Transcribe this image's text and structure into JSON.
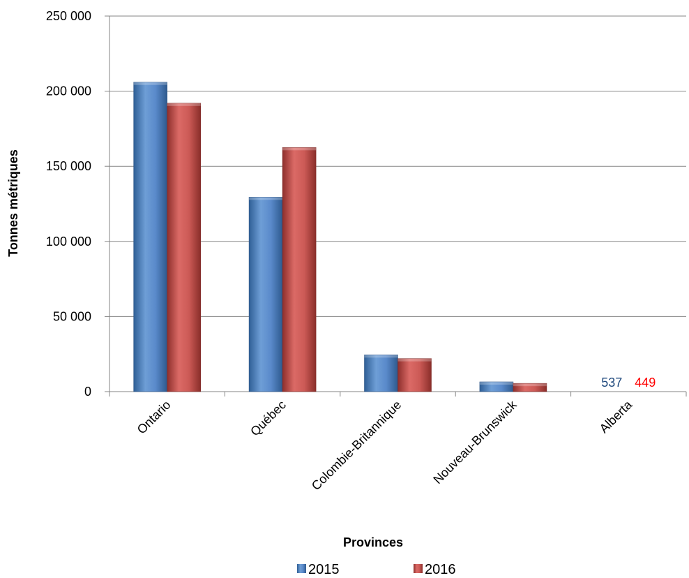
{
  "chart_data": {
    "type": "bar",
    "categories": [
      "Ontario",
      "Québec",
      "Colombie-Britannique",
      "Nouveau-Brunswick",
      "Alberta"
    ],
    "series": [
      {
        "name": "2015",
        "values": [
          206000,
          129500,
          24500,
          6500,
          537
        ],
        "color": "#4F81BD"
      },
      {
        "name": "2016",
        "values": [
          192000,
          162500,
          22000,
          5500,
          449
        ],
        "color": "#C0504D"
      }
    ],
    "data_labels": [
      {
        "category": "Alberta",
        "series": "2015",
        "text": "537",
        "color": "#1F497D"
      },
      {
        "category": "Alberta",
        "series": "2016",
        "text": "449",
        "color": "#FF0000"
      }
    ],
    "xlabel": "Provinces",
    "ylabel": "Tonnes métriques",
    "ylim": [
      0,
      250000
    ],
    "yticks": [
      0,
      50000,
      100000,
      150000,
      200000,
      250000
    ],
    "ytick_labels": [
      "0",
      "50 000",
      "100 000",
      "150 000",
      "200 000",
      "250 000"
    ],
    "grid": true,
    "legend_placement": "bottom"
  }
}
